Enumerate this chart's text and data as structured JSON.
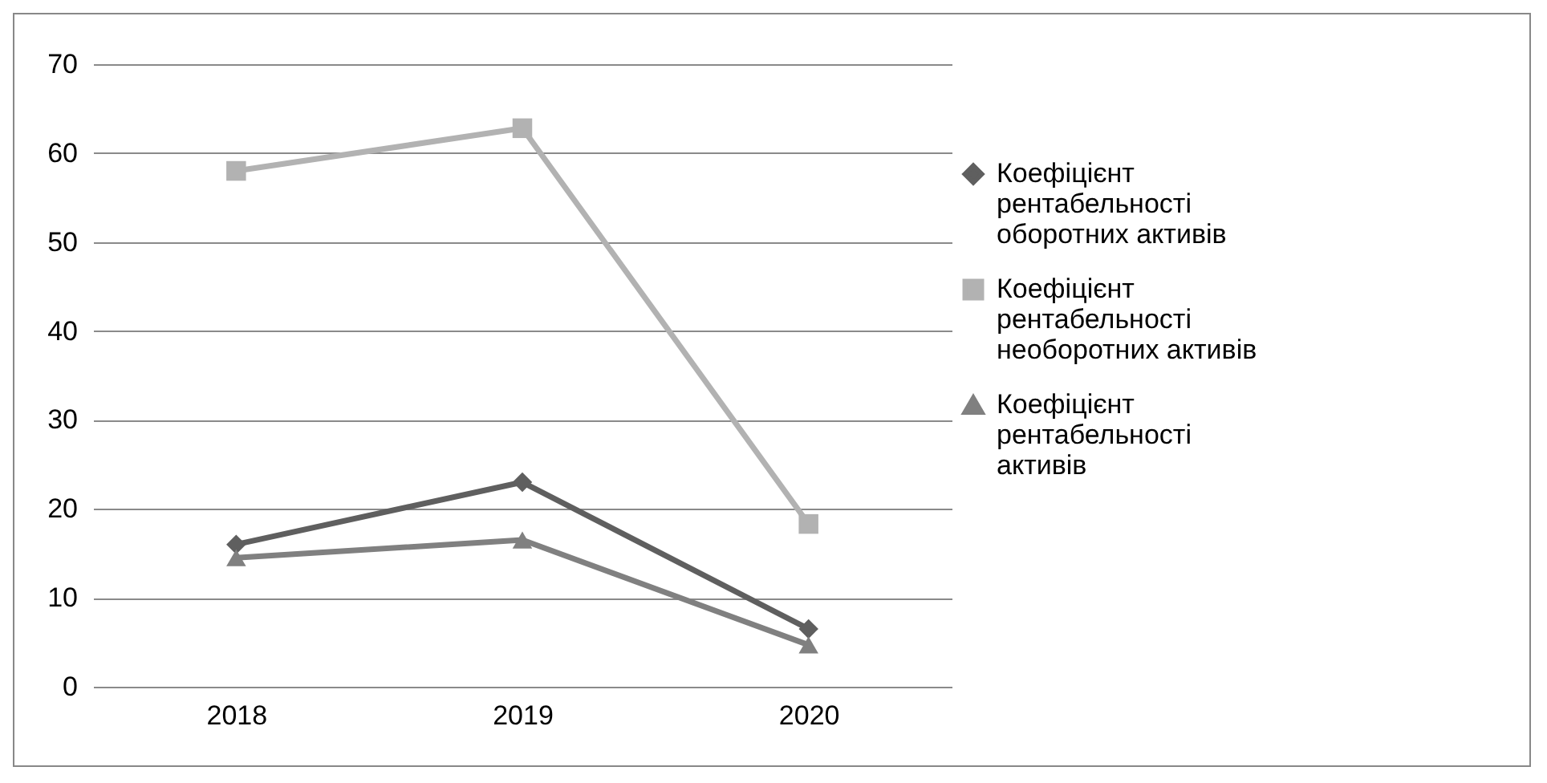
{
  "chart_data": {
    "type": "line",
    "categories": [
      "2018",
      "2019",
      "2020"
    ],
    "series": [
      {
        "name": "Коефіцієнт рентабельності оборотних активів",
        "color": "#5f5f5f",
        "marker": "diamond",
        "values": [
          16.0,
          23.0,
          6.5
        ]
      },
      {
        "name": "Коефіцієнт рентабельності необоротних активів",
        "color": "#b2b2b2",
        "marker": "square",
        "values": [
          58.0,
          62.8,
          18.3
        ]
      },
      {
        "name": "Коефіцієнт рентабельності активів",
        "color": "#808080",
        "marker": "triangle",
        "values": [
          14.5,
          16.5,
          4.7
        ]
      }
    ],
    "ylim": [
      0,
      70
    ],
    "yticks": [
      0,
      10,
      20,
      30,
      40,
      50,
      60,
      70
    ],
    "grid": "y",
    "legend": "right"
  }
}
